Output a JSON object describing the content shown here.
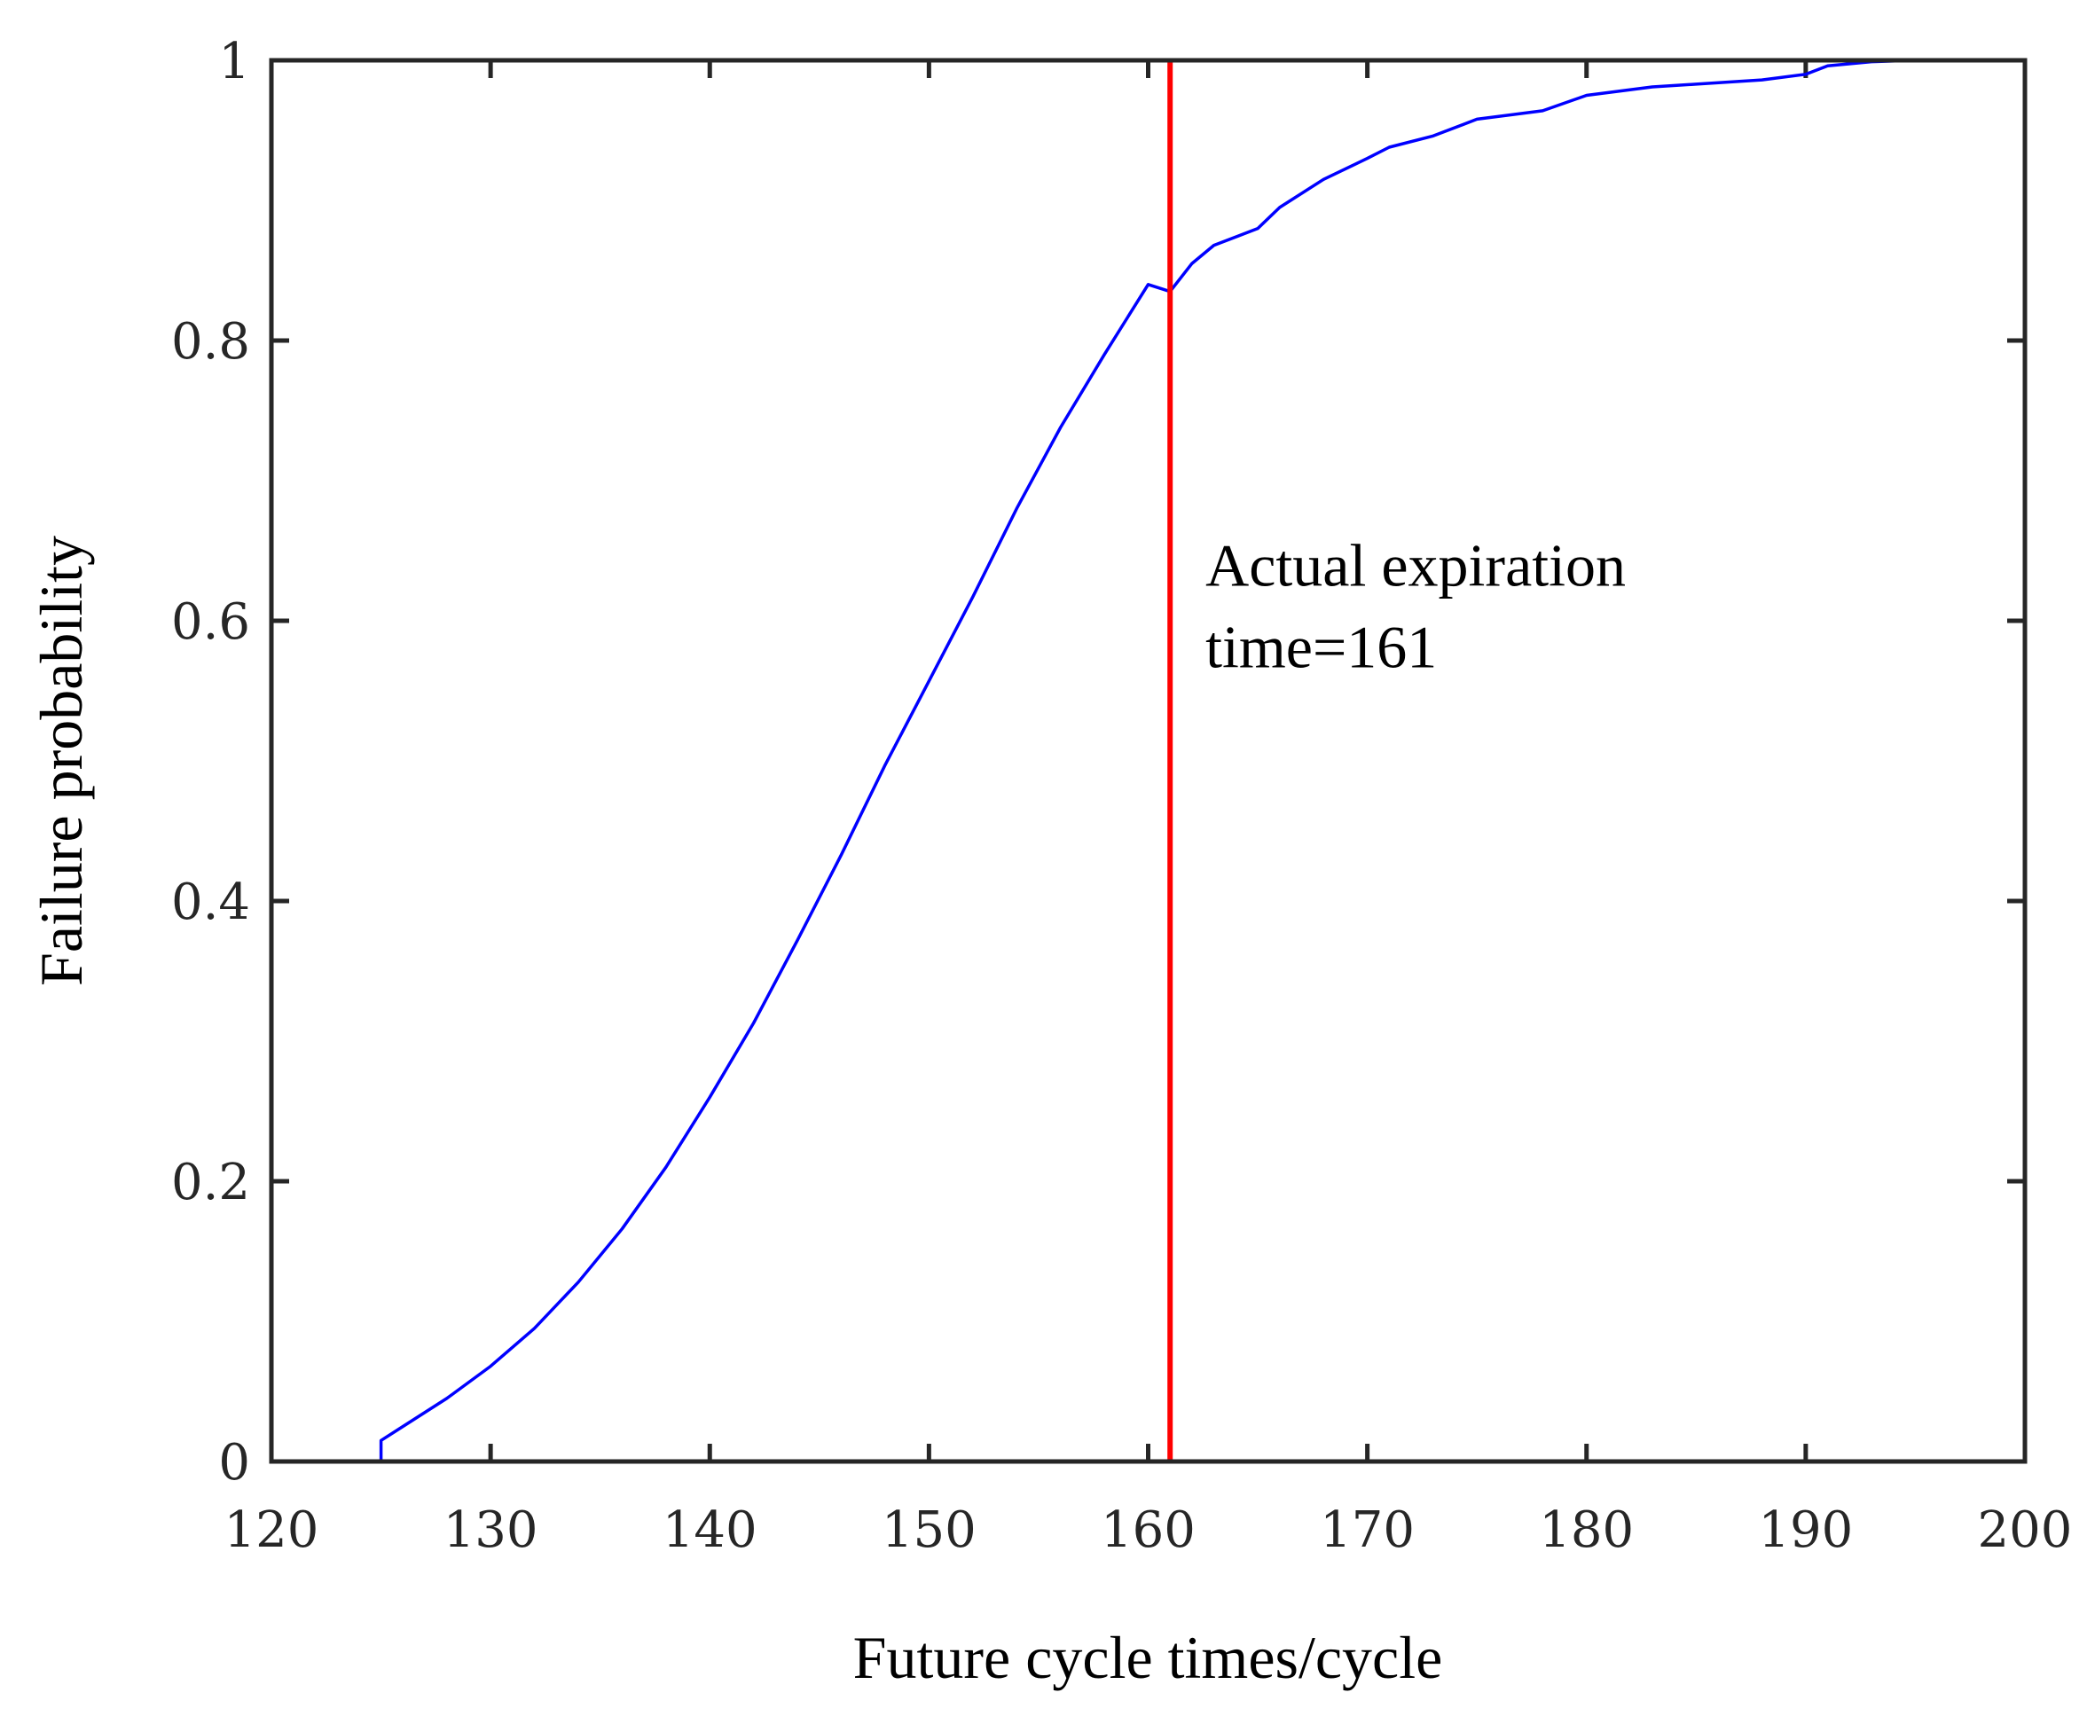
{
  "chart_data": {
    "type": "line",
    "title": "",
    "xlabel": "Future cycle times/cycle",
    "ylabel": "Failure probability",
    "xlim": [
      120,
      200
    ],
    "ylim": [
      0,
      1
    ],
    "xticks": [
      120,
      130,
      140,
      150,
      160,
      170,
      180,
      190,
      200
    ],
    "yticks": [
      0,
      0.2,
      0.4,
      0.6,
      0.8,
      1
    ],
    "xtick_labels": [
      "120",
      "130",
      "140",
      "150",
      "160",
      "170",
      "180",
      "190",
      "200"
    ],
    "ytick_labels": [
      "0",
      "0.2",
      "0.4",
      "0.6",
      "0.8",
      "1"
    ],
    "grid": false,
    "series": [
      {
        "name": "Failure probability",
        "color": "#0000ff",
        "x": [
          125,
          125,
          126,
          128,
          130,
          132,
          134,
          136,
          138,
          140,
          142,
          144,
          146,
          148,
          150,
          152,
          154,
          156,
          158,
          160,
          161,
          162,
          163,
          165,
          166,
          168,
          170,
          171,
          173,
          175,
          178,
          180,
          183,
          185,
          188,
          190,
          191,
          193,
          195
        ],
        "y": [
          0,
          0.015,
          0.025,
          0.045,
          0.068,
          0.095,
          0.128,
          0.166,
          0.21,
          0.26,
          0.313,
          0.372,
          0.433,
          0.497,
          0.557,
          0.617,
          0.68,
          0.738,
          0.79,
          0.84,
          0.835,
          0.855,
          0.868,
          0.88,
          0.895,
          0.915,
          0.93,
          0.938,
          0.946,
          0.958,
          0.964,
          0.975,
          0.981,
          0.983,
          0.986,
          0.99,
          0.996,
          0.999,
          1.0
        ]
      }
    ],
    "vline": {
      "x": 161,
      "color": "#ff0000",
      "label": "Actual expiration time=161"
    },
    "annotation": {
      "line1": "Actual expiration",
      "line2": "time=161",
      "x": 161.4,
      "y": 0.625
    }
  }
}
